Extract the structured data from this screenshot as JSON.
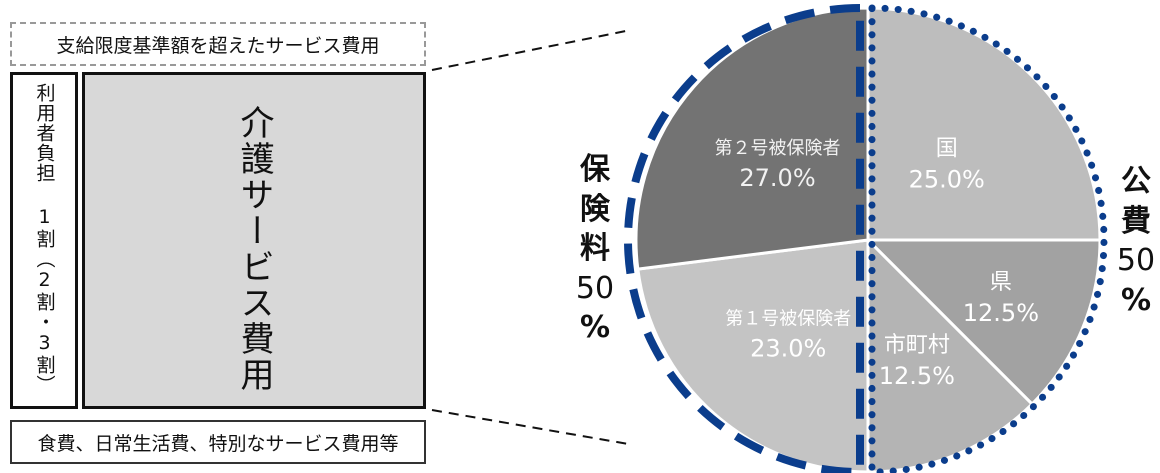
{
  "left_diagram": {
    "top_box": "支給限度基準額を超えたサービス費用",
    "user_burden": "利用者負担 1割（2割・3割）",
    "care_service": "介護サービス費用",
    "bottom_box": "食費、日常生活費、特別なサービス費用等"
  },
  "side_labels": {
    "insurance": {
      "chars": [
        "保",
        "険",
        "料"
      ],
      "num": "50",
      "pct": "%"
    },
    "public": {
      "chars": [
        "公",
        "費"
      ],
      "num": "50",
      "pct": "%"
    }
  },
  "chart_data": {
    "type": "pie",
    "slices": [
      {
        "label": "国",
        "value": 25.0,
        "value_label": "25.0%",
        "color": "#bdbdbd"
      },
      {
        "label": "県",
        "value": 12.5,
        "value_label": "12.5%",
        "color": "#a2a2a2"
      },
      {
        "label": "市町村",
        "value": 12.5,
        "value_label": "12.5%",
        "color": "#b4b4b4"
      },
      {
        "label": "第１号被保険者",
        "value": 23.0,
        "value_label": "23.0%",
        "color": "#c4c4c4"
      },
      {
        "label": "第２号被保険者",
        "value": 27.0,
        "value_label": "27.0%",
        "color": "#737373"
      }
    ],
    "start": "top, clockwise",
    "groups": [
      {
        "label": "保険料 50%",
        "style": "dashed",
        "color": "#0b3d8c"
      },
      {
        "label": "公費 50%",
        "style": "dotted",
        "color": "#0b3d8c"
      }
    ]
  }
}
